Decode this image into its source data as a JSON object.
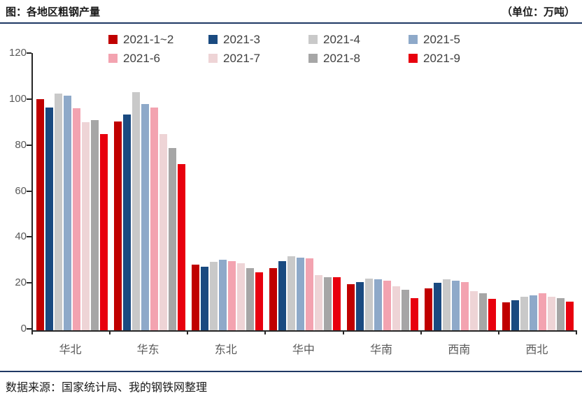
{
  "header": {
    "title": "图：各地区粗钢产量",
    "unit_label": "（单位：万吨）"
  },
  "footer": {
    "source": "数据来源：国家统计局、我的钢铁网整理"
  },
  "style_colors": {
    "rule": "#1f3864",
    "axis": "#262626",
    "axis_label": "#595959",
    "legend_text": "#404040"
  },
  "chart_data": {
    "type": "bar",
    "title": "各地区粗钢产量",
    "value_unit": "万吨",
    "categories": [
      "华北",
      "华东",
      "东北",
      "华中",
      "华南",
      "西南",
      "西北"
    ],
    "series": [
      {
        "name": "2021-1~2",
        "color": "#c00000",
        "values": [
          100,
          90.5,
          28.5,
          27,
          20,
          18,
          12
        ]
      },
      {
        "name": "2021-3",
        "color": "#1a4a80",
        "values": [
          96.5,
          93.5,
          27.5,
          30,
          21,
          20.5,
          13
        ]
      },
      {
        "name": "2021-4",
        "color": "#c9c9c9",
        "values": [
          102.5,
          103,
          29.5,
          32,
          22.5,
          22,
          14.5
        ]
      },
      {
        "name": "2021-5",
        "color": "#8ea9c9",
        "values": [
          101.5,
          98,
          30.5,
          31.5,
          22,
          21.5,
          15
        ]
      },
      {
        "name": "2021-6",
        "color": "#f3a3b0",
        "values": [
          96,
          96.5,
          30,
          31,
          21.5,
          21,
          16
        ]
      },
      {
        "name": "2021-7",
        "color": "#eed4d6",
        "values": [
          90,
          85,
          29,
          24,
          19,
          17,
          14.5
        ]
      },
      {
        "name": "2021-8",
        "color": "#a6a6a6",
        "values": [
          91,
          79,
          27,
          23,
          17.5,
          16,
          14
        ]
      },
      {
        "name": "2021-9",
        "color": "#e8000e",
        "values": [
          85,
          72,
          25,
          23,
          14,
          13.5,
          12.5
        ]
      }
    ],
    "ylim": [
      0,
      120
    ],
    "yticks": [
      0,
      20,
      40,
      60,
      80,
      100,
      120
    ],
    "grid": false,
    "legend_position": "top",
    "legend_rows": 2
  }
}
